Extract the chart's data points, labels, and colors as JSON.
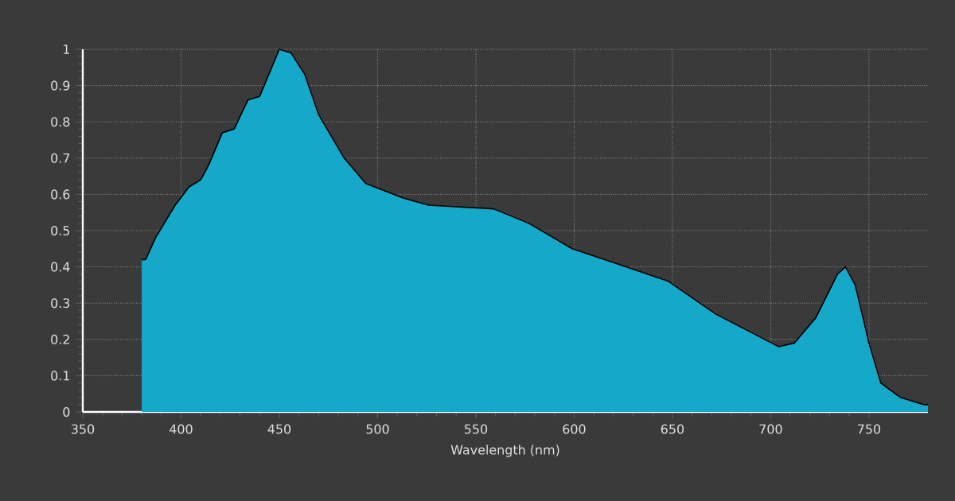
{
  "chart_data": {
    "type": "area",
    "xlabel": "Wavelength (nm)",
    "xlim": [
      350,
      780
    ],
    "ylim": [
      0,
      1
    ],
    "xticks": [
      350,
      400,
      450,
      500,
      550,
      600,
      650,
      700,
      750
    ],
    "yticks": [
      0,
      0.1,
      0.2,
      0.3,
      0.4,
      0.5,
      0.6,
      0.7,
      0.8,
      0.9,
      1
    ],
    "grid": true,
    "series": [
      {
        "color": "#16a8c8",
        "x": [
          380,
          382,
          387,
          397,
          404,
          410,
          414,
          421,
          427,
          434,
          440,
          450,
          456,
          463,
          470,
          483,
          494,
          513,
          526,
          559,
          577,
          599,
          621,
          648,
          672,
          704,
          712,
          723,
          734,
          738,
          743,
          750,
          756,
          766,
          778,
          780
        ],
        "values": [
          0.42,
          0.42,
          0.48,
          0.57,
          0.62,
          0.64,
          0.68,
          0.77,
          0.78,
          0.86,
          0.87,
          1.0,
          0.99,
          0.93,
          0.82,
          0.7,
          0.63,
          0.59,
          0.57,
          0.56,
          0.52,
          0.45,
          0.41,
          0.36,
          0.27,
          0.18,
          0.19,
          0.26,
          0.38,
          0.4,
          0.35,
          0.19,
          0.08,
          0.04,
          0.02,
          0.02
        ]
      }
    ]
  }
}
